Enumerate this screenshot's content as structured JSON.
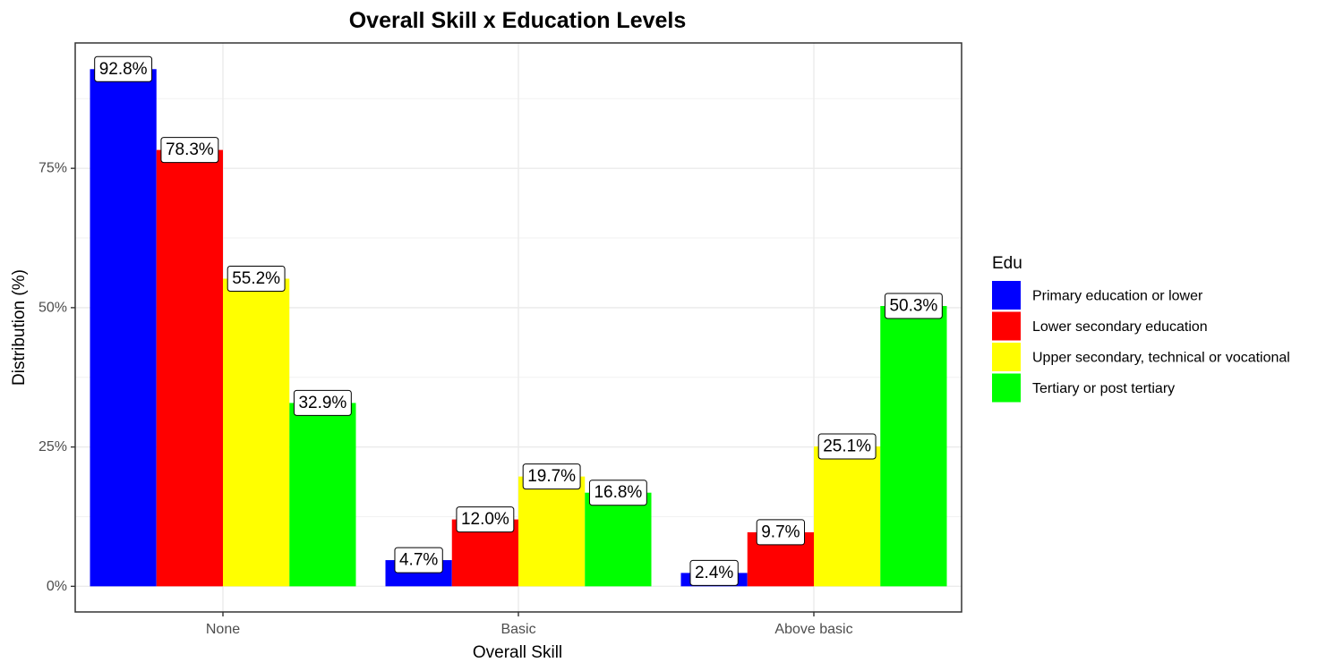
{
  "chart_data": {
    "type": "bar",
    "title": "Overall Skill x Education Levels",
    "xlabel": "Overall Skill",
    "ylabel": "Distribution (%)",
    "categories": [
      "None",
      "Basic",
      "Above basic"
    ],
    "y_ticks": [
      0,
      25,
      50,
      75
    ],
    "y_tick_labels": [
      "0%",
      "25%",
      "50%",
      "75%"
    ],
    "ylim": [
      -4.6,
      97.5
    ],
    "grid": true,
    "legend_title": "Edu",
    "legend_position": "right",
    "series": [
      {
        "name": "Primary education or lower",
        "color": "#0000FF",
        "values": [
          92.8,
          4.7,
          2.4
        ],
        "labels": [
          "92.8%",
          "4.7%",
          "2.4%"
        ]
      },
      {
        "name": "Lower secondary education",
        "color": "#FF0000",
        "values": [
          78.3,
          12.0,
          9.7
        ],
        "labels": [
          "78.3%",
          "12.0%",
          "9.7%"
        ]
      },
      {
        "name": "Upper secondary, technical or vocational",
        "color": "#FFFF00",
        "values": [
          55.2,
          19.7,
          25.1
        ],
        "labels": [
          "55.2%",
          "19.7%",
          "25.1%"
        ]
      },
      {
        "name": "Tertiary or post tertiary",
        "color": "#00FF00",
        "values": [
          32.9,
          16.8,
          50.3
        ],
        "labels": [
          "32.9%",
          "16.8%",
          "50.3%"
        ]
      }
    ]
  }
}
